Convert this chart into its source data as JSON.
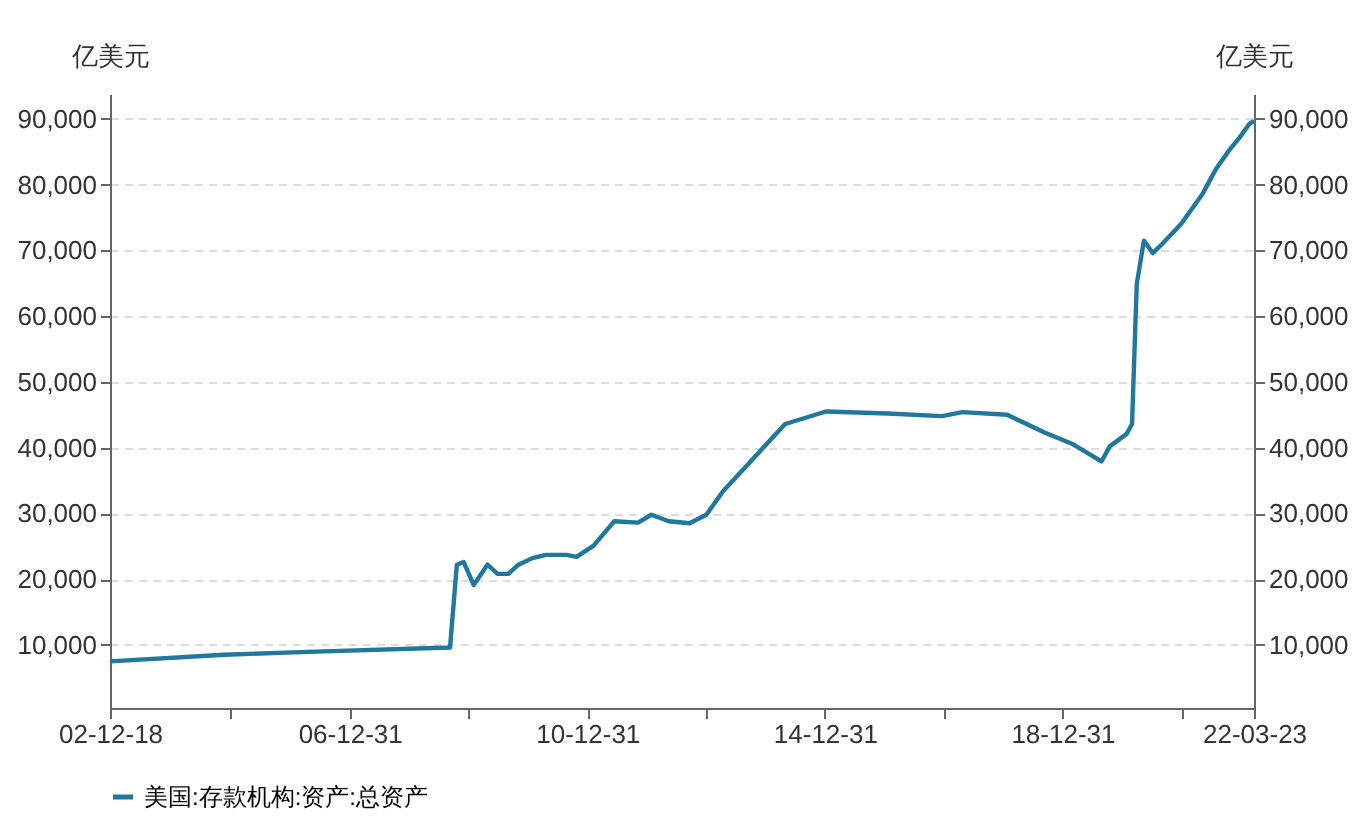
{
  "chart_data": {
    "type": "line",
    "ylabel": "亿美元",
    "y2label": "亿美元",
    "x": [
      "2002-12-18",
      "2004-11-20",
      "2006-03-01",
      "2008-09-08",
      "2008-10-20",
      "2008-12-01",
      "2009-02-01",
      "2009-04-26",
      "2009-06-28",
      "2009-09-01",
      "2009-11-03",
      "2010-01-27",
      "2010-04-20",
      "2010-08-25",
      "2010-10-26",
      "2011-02-08",
      "2011-06-14",
      "2011-11-08",
      "2012-01-30",
      "2012-05-15",
      "2012-09-20",
      "2013-01-01",
      "2013-04-15",
      "2013-08-20",
      "2013-12-25",
      "2014-05-01",
      "2015-01-07",
      "2016-01-20",
      "2016-12-20",
      "2017-04-25",
      "2018-01-25",
      "2018-09-12",
      "2019-02-27",
      "2019-08-28",
      "2019-10-18",
      "2020-01-30",
      "2020-03-03",
      "2020-04-01",
      "2020-05-15",
      "2020-07-08",
      "2020-08-28",
      "2021-01-01",
      "2021-05-08",
      "2021-07-30",
      "2021-10-23",
      "2021-12-25",
      "2022-02-24",
      "2022-03-23"
    ],
    "series": [
      {
        "name": "美国:存款机构:资产:总资产",
        "color": "#21789f",
        "values": [
          7500,
          8500,
          8900,
          9600,
          22200,
          22600,
          19100,
          22200,
          20800,
          20800,
          22200,
          23200,
          23700,
          23700,
          23400,
          25100,
          28800,
          28600,
          29800,
          28800,
          28500,
          29800,
          33400,
          36800,
          40200,
          43600,
          45500,
          45200,
          44800,
          45400,
          45000,
          42300,
          40600,
          37900,
          40200,
          42100,
          43600,
          64900,
          71500,
          69600,
          70800,
          74100,
          78500,
          82300,
          85300,
          87200,
          89300,
          89700
        ]
      }
    ],
    "xlim": [
      "2002-12-18",
      "2022-03-23"
    ],
    "xticks": [
      {
        "value": "2002-12-18",
        "label": "02-12-18"
      },
      {
        "value": "2004-12-31",
        "label": null
      },
      {
        "value": "2006-12-31",
        "label": "06-12-31"
      },
      {
        "value": "2008-12-31",
        "label": null
      },
      {
        "value": "2010-12-31",
        "label": "10-12-31"
      },
      {
        "value": "2012-12-31",
        "label": null
      },
      {
        "value": "2014-12-31",
        "label": "14-12-31"
      },
      {
        "value": "2016-12-31",
        "label": null
      },
      {
        "value": "2018-12-31",
        "label": "18-12-31"
      },
      {
        "value": "2020-12-31",
        "label": null
      },
      {
        "value": "2022-03-23",
        "label": "22-03-23"
      }
    ],
    "ylim": [
      400,
      93800
    ],
    "yticks": [
      {
        "value": 10000,
        "label": "10,000"
      },
      {
        "value": 20000,
        "label": "20,000"
      },
      {
        "value": 30000,
        "label": "30,000"
      },
      {
        "value": 40000,
        "label": "40,000"
      },
      {
        "value": 50000,
        "label": "50,000"
      },
      {
        "value": 60000,
        "label": "60,000"
      },
      {
        "value": 70000,
        "label": "70,000"
      },
      {
        "value": 80000,
        "label": "80,000"
      },
      {
        "value": 90000,
        "label": "90,000"
      }
    ],
    "y2lim": [
      400,
      93800
    ],
    "y2ticks": [
      {
        "value": 10000,
        "label": "10,000"
      },
      {
        "value": 20000,
        "label": "20,000"
      },
      {
        "value": 30000,
        "label": "30,000"
      },
      {
        "value": 40000,
        "label": "40,000"
      },
      {
        "value": 50000,
        "label": "50,000"
      },
      {
        "value": 60000,
        "label": "60,000"
      },
      {
        "value": 70000,
        "label": "70,000"
      },
      {
        "value": 80000,
        "label": "80,000"
      },
      {
        "value": 90000,
        "label": "90,000"
      }
    ],
    "grid": "y",
    "legend": "bottom",
    "marker": "none",
    "line_style": "solid"
  }
}
